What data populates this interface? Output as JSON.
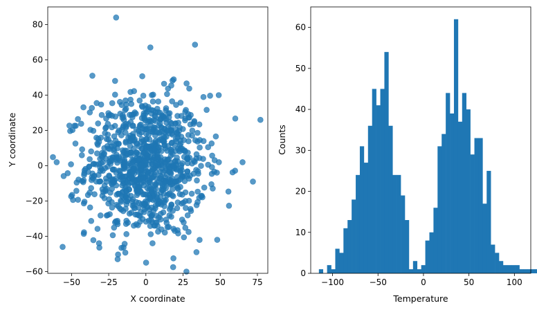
{
  "chart_data": [
    {
      "type": "scatter",
      "xlabel": "X coordinate",
      "ylabel": "Y coordinate",
      "xlim": [
        -66,
        82
      ],
      "ylim": [
        -61,
        90
      ],
      "xticks": [
        -50,
        -25,
        0,
        25,
        50,
        75
      ],
      "yticks": [
        -60,
        -40,
        -20,
        0,
        20,
        40,
        60,
        80
      ],
      "xtick_labels": [
        "−50",
        "−25",
        "0",
        "25",
        "50",
        "75"
      ],
      "ytick_labels": [
        "−60",
        "−40",
        "−20",
        "0",
        "20",
        "40",
        "60",
        "80"
      ],
      "color": "#1f77b4",
      "alpha": 0.75,
      "n_points_estimate": 1000,
      "distribution_estimate": {
        "x_center": 0,
        "x_spread": 20,
        "y_center": 0,
        "y_spread": 20
      },
      "notable_points": [
        {
          "x": -20,
          "y": 84
        },
        {
          "x": 3,
          "y": 67
        },
        {
          "x": -36,
          "y": 51
        },
        {
          "x": 77,
          "y": 26
        },
        {
          "x": -60,
          "y": 2
        },
        {
          "x": -56,
          "y": -46
        },
        {
          "x": 72,
          "y": -9
        },
        {
          "x": 48,
          "y": -42
        },
        {
          "x": 34,
          "y": -49
        },
        {
          "x": -19,
          "y": -53
        },
        {
          "x": 65,
          "y": 2
        },
        {
          "x": 49,
          "y": 40
        }
      ]
    },
    {
      "type": "bar",
      "subtype": "histogram",
      "xlabel": "Temperature",
      "ylabel": "Counts",
      "xlim": [
        -124,
        118
      ],
      "ylim": [
        0,
        65
      ],
      "xticks": [
        -100,
        -50,
        0,
        50,
        100
      ],
      "yticks": [
        0,
        10,
        20,
        30,
        40,
        50,
        60
      ],
      "xtick_labels": [
        "−100",
        "−50",
        "0",
        "50",
        "100"
      ],
      "ytick_labels": [
        "0",
        "10",
        "20",
        "30",
        "40",
        "50",
        "60"
      ],
      "color": "#1f77b4",
      "bin_start": -115,
      "bin_width": 4.5,
      "values": [
        1,
        0,
        2,
        1,
        6,
        5,
        11,
        13,
        18,
        24,
        31,
        27,
        36,
        45,
        41,
        45,
        54,
        36,
        24,
        24,
        19,
        13,
        1,
        3,
        1,
        2,
        8,
        10,
        16,
        31,
        34,
        44,
        39,
        62,
        37,
        44,
        40,
        29,
        33,
        33,
        17,
        25,
        7,
        5,
        3,
        2,
        2,
        2,
        2,
        1,
        1,
        1,
        1,
        1
      ]
    }
  ]
}
